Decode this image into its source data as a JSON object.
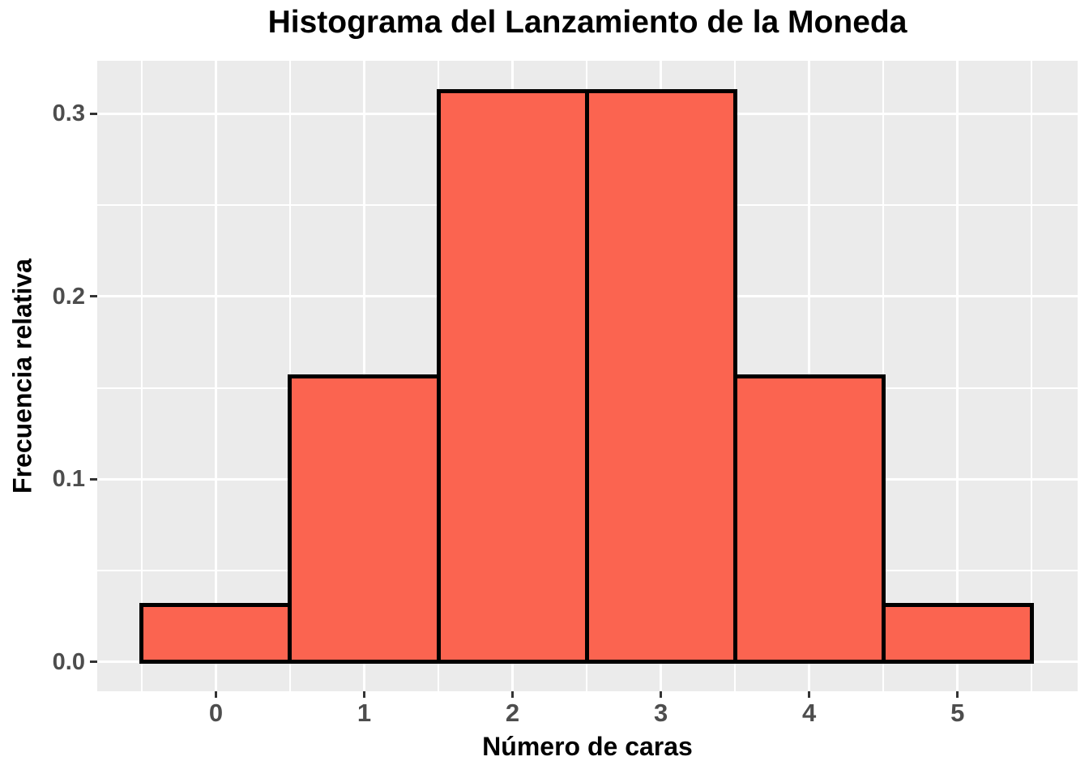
{
  "title": "Histograma del Lanzamiento de la Moneda",
  "colors": {
    "background": "#FFFFFF",
    "panel_bg": "#EBEBEB",
    "grid": "#FFFFFF",
    "bar_fill": "#FB6450",
    "bar_border": "#000000",
    "tick_label": "#4D4D4D",
    "axis_title": "#000000",
    "tick_mark": "#333333"
  },
  "chart_data": {
    "type": "bar",
    "subtype": "histogram",
    "title": "Histograma del Lanzamiento de la Moneda",
    "xlabel": "Número de caras",
    "ylabel": "Frecuencia relativa",
    "categories": [
      0,
      1,
      2,
      3,
      4,
      5
    ],
    "values": [
      0.03125,
      0.15625,
      0.3125,
      0.3125,
      0.15625,
      0.03125
    ],
    "bar_width": 1,
    "xlim": [
      -0.8,
      5.81
    ],
    "ylim": [
      -0.016,
      0.329
    ],
    "x_ticks": [
      0,
      1,
      2,
      3,
      4,
      5
    ],
    "x_tick_labels": [
      "0",
      "1",
      "2",
      "3",
      "4",
      "5"
    ],
    "y_ticks": [
      0,
      0.1,
      0.2,
      0.3
    ],
    "y_tick_labels": [
      "0.0",
      "0.1",
      "0.2",
      "0.3"
    ],
    "x_minor_ticks": [
      -0.5,
      0.5,
      1.5,
      2.5,
      3.5,
      4.5,
      5.5
    ],
    "y_minor_ticks": [
      0.05,
      0.15,
      0.25
    ],
    "grid": true,
    "legend_position": "none"
  }
}
